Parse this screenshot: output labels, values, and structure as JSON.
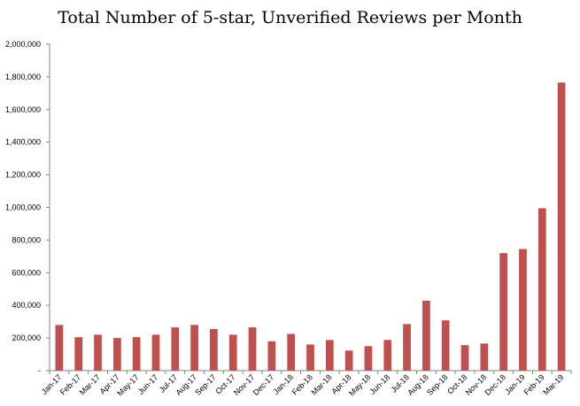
{
  "chart_data": {
    "type": "bar",
    "title": "Total Number of 5-star, Unverified Reviews per Month",
    "xlabel": "",
    "ylabel": "",
    "ylim": [
      0,
      2000000
    ],
    "yticks": [
      0,
      200000,
      400000,
      600000,
      800000,
      1000000,
      1200000,
      1400000,
      1600000,
      1800000,
      2000000
    ],
    "ytick_labels": [
      "-",
      "200,000",
      "400,000",
      "600,000",
      "800,000",
      "1,000,000",
      "1,200,000",
      "1,400,000",
      "1,600,000",
      "1,800,000",
      "2,000,000"
    ],
    "categories": [
      "Jan-17",
      "Feb-17",
      "Mar-17",
      "Apr-17",
      "May-17",
      "Jun-17",
      "Jul-17",
      "Aug-17",
      "Sep-17",
      "Oct-17",
      "Nov-17",
      "Dec-17",
      "Jan-18",
      "Feb-18",
      "Mar-18",
      "Apr-18",
      "May-18",
      "Jun-18",
      "Jul-18",
      "Aug-18",
      "Sep-18",
      "Oct-18",
      "Nov-18",
      "Dec-18",
      "Jan-19",
      "Feb-19",
      "Mar-19"
    ],
    "values": [
      280000,
      205000,
      220000,
      200000,
      205000,
      220000,
      265000,
      280000,
      255000,
      220000,
      265000,
      180000,
      225000,
      160000,
      188000,
      123000,
      150000,
      188000,
      285000,
      428000,
      308000,
      156000,
      166000,
      720000,
      745000,
      995000,
      1765000
    ],
    "bar_color": "#c0504d",
    "grid": false
  }
}
